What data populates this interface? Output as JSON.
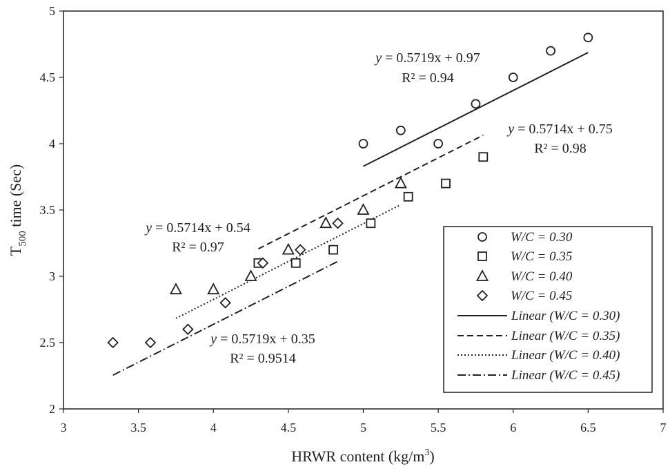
{
  "chart_data": {
    "type": "scatter",
    "xlabel": "HRWR content (kg/m",
    "xlabel_sup": "3",
    "xlabel_tail": ")",
    "ylabel_main": "T",
    "ylabel_sub": "500",
    "ylabel_tail": " time (Sec)",
    "xlim": [
      3,
      7
    ],
    "ylim": [
      2,
      5
    ],
    "xticks": [
      "3",
      "3.5",
      "4",
      "4.5",
      "5",
      "5.5",
      "6",
      "6.5",
      "7"
    ],
    "yticks": [
      "2",
      "2.5",
      "3",
      "3.5",
      "4",
      "4.5",
      "5"
    ],
    "grid": false,
    "legend_position": "lower-right",
    "series": [
      {
        "name": "W/C = 0.30",
        "marker": "circle",
        "x": [
          5.0,
          5.25,
          5.5,
          5.75,
          6.0,
          6.25,
          6.5
        ],
        "y": [
          4.0,
          4.1,
          4.0,
          4.3,
          4.5,
          4.7,
          4.8
        ]
      },
      {
        "name": "W/C = 0.35",
        "marker": "square",
        "x": [
          4.3,
          4.55,
          4.8,
          5.05,
          5.3,
          5.55,
          5.8
        ],
        "y": [
          3.1,
          3.1,
          3.2,
          3.4,
          3.6,
          3.7,
          3.9
        ]
      },
      {
        "name": "W/C = 0.40",
        "marker": "triangle",
        "x": [
          3.75,
          4.0,
          4.25,
          4.5,
          4.75,
          5.0,
          5.25
        ],
        "y": [
          2.9,
          2.9,
          3.0,
          3.2,
          3.4,
          3.5,
          3.7
        ]
      },
      {
        "name": "W/C = 0.45",
        "marker": "diamond",
        "x": [
          3.33,
          3.58,
          3.83,
          4.08,
          4.33,
          4.58,
          4.83
        ],
        "y": [
          2.5,
          2.5,
          2.6,
          2.8,
          3.1,
          3.2,
          3.4
        ]
      }
    ],
    "trendlines": [
      {
        "name": "Linear (W/C = 0.30)",
        "slope": 0.5719,
        "intercept": 0.97,
        "x_range": [
          5.0,
          6.5
        ],
        "dash": "solid",
        "equation": "y = 0.5719x + 0.97",
        "r2": "R² = 0.94"
      },
      {
        "name": "Linear (W/C = 0.35)",
        "slope": 0.5714,
        "intercept": 0.75,
        "x_range": [
          4.3,
          5.8
        ],
        "dash": "dash",
        "equation": "y = 0.5714x + 0.75",
        "r2": "R² = 0.98"
      },
      {
        "name": "Linear (W/C = 0.40)",
        "slope": 0.5714,
        "intercept": 0.54,
        "x_range": [
          3.75,
          5.25
        ],
        "dash": "dot",
        "equation": "y = 0.5714x + 0.54",
        "r2": "R² = 0.97"
      },
      {
        "name": "Linear (W/C = 0.45)",
        "slope": 0.5719,
        "intercept": 0.35,
        "x_range": [
          3.33,
          4.83
        ],
        "dash": "dashdot",
        "equation": "y = 0.5719x + 0.35",
        "r2": "R² = 0.9514"
      }
    ]
  }
}
